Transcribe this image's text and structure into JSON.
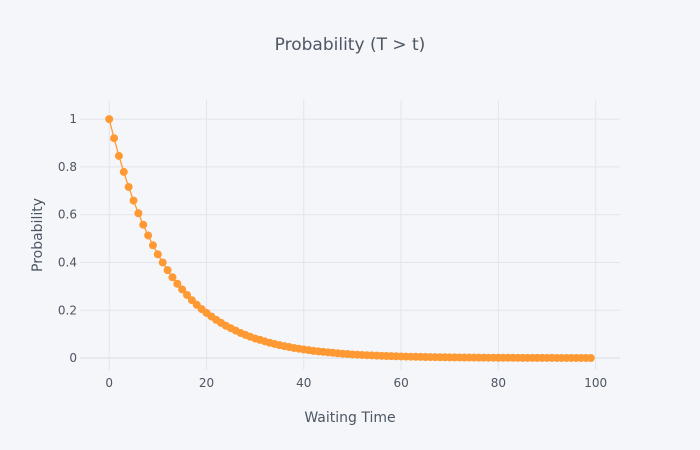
{
  "chart_data": {
    "type": "line",
    "title": "Probability (T > t)",
    "xlabel": "Waiting Time",
    "ylabel": "Probability",
    "xlim": [
      -6,
      105
    ],
    "ylim": [
      -0.05,
      1.08
    ],
    "xticks": [
      0,
      20,
      40,
      60,
      80,
      100
    ],
    "yticks": [
      0,
      0.2,
      0.4,
      0.6,
      0.8,
      1
    ],
    "grid": true,
    "legend": "none",
    "colors": {
      "series": "#ff9933",
      "background": "#f5f6f9",
      "grid": "#e1e5ed",
      "text": "#4d5663"
    },
    "series": [
      {
        "x": [
          0,
          1,
          2,
          3,
          4,
          5,
          6,
          7,
          8,
          9,
          10,
          11,
          12,
          13,
          14,
          15,
          16,
          17,
          18,
          19,
          20,
          21,
          22,
          23,
          24,
          25,
          26,
          27,
          28,
          29,
          30,
          31,
          32,
          33,
          34,
          35,
          36,
          37,
          38,
          39,
          40,
          41,
          42,
          43,
          44,
          45,
          46,
          47,
          48,
          49,
          50,
          51,
          52,
          53,
          54,
          55,
          56,
          57,
          58,
          59,
          60,
          61,
          62,
          63,
          64,
          65,
          66,
          67,
          68,
          69,
          70,
          71,
          72,
          73,
          74,
          75,
          76,
          77,
          78,
          79,
          80,
          81,
          82,
          83,
          84,
          85,
          86,
          87,
          88,
          89,
          90,
          91,
          92,
          93,
          94,
          95,
          96,
          97,
          98,
          99
        ],
        "y": [
          1,
          0.92,
          0.846,
          0.779,
          0.716,
          0.659,
          0.606,
          0.558,
          0.513,
          0.472,
          0.434,
          0.4,
          0.368,
          0.338,
          0.311,
          0.287,
          0.264,
          0.242,
          0.223,
          0.205,
          0.189,
          0.174,
          0.16,
          0.147,
          0.135,
          0.125,
          0.115,
          0.105,
          0.097,
          0.089,
          0.082,
          0.076,
          0.07,
          0.064,
          0.059,
          0.054,
          0.05,
          0.046,
          0.042,
          0.039,
          0.036,
          0.033,
          0.03,
          0.028,
          0.026,
          0.024,
          0.022,
          0.02,
          0.018,
          0.017,
          0.015,
          0.014,
          0.013,
          0.012,
          0.011,
          0.01,
          0.0093,
          0.0086,
          0.0079,
          0.0073,
          0.0067,
          0.0061,
          0.0056,
          0.0052,
          0.0048,
          0.0044,
          0.004,
          0.0037,
          0.0034,
          0.0031,
          0.0029,
          0.0027,
          0.0025,
          0.0023,
          0.0021,
          0.0019,
          0.0018,
          0.0016,
          0.0015,
          0.0014,
          0.0013,
          0.0012,
          0.0011,
          0.001,
          0.0009,
          0.0008,
          0.0008,
          0.0007,
          0.0006,
          0.0006,
          0.0005,
          0.0005,
          0.0004,
          0.0004,
          0.0004,
          0.0003,
          0.0003,
          0.0003,
          0.0003,
          0.0002
        ]
      }
    ]
  }
}
